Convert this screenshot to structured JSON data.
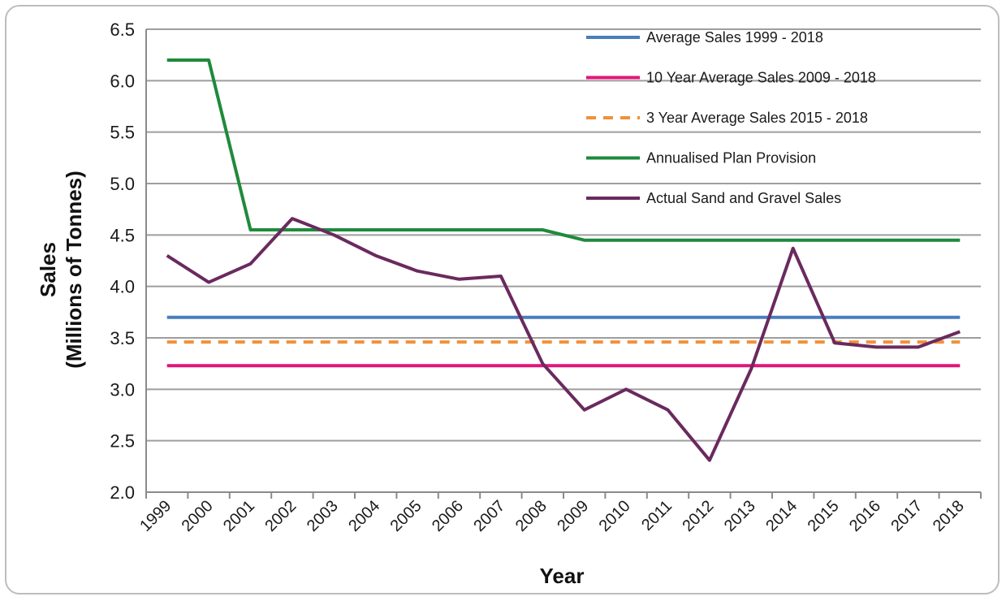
{
  "chart_data": {
    "type": "line",
    "xlabel": "Year",
    "ylabel_line1": "Sales",
    "ylabel_line2": "(Millions of Tonnes)",
    "ylim": [
      2.0,
      6.5
    ],
    "yticks": [
      "2.0",
      "2.5",
      "3.0",
      "3.5",
      "4.0",
      "4.5",
      "5.0",
      "5.5",
      "6.0",
      "6.5"
    ],
    "grid": true,
    "legend_position": "top-right",
    "categories": [
      "1999",
      "2000",
      "2001",
      "2002",
      "2003",
      "2004",
      "2005",
      "2006",
      "2007",
      "2008",
      "2009",
      "2010",
      "2011",
      "2012",
      "2013",
      "2014",
      "2015",
      "2016",
      "2017",
      "2018"
    ],
    "series": [
      {
        "name": "Average Sales 1999 - 2018",
        "color": "#4a7ebb",
        "dash": false,
        "values": [
          3.7,
          3.7,
          3.7,
          3.7,
          3.7,
          3.7,
          3.7,
          3.7,
          3.7,
          3.7,
          3.7,
          3.7,
          3.7,
          3.7,
          3.7,
          3.7,
          3.7,
          3.7,
          3.7,
          3.7
        ]
      },
      {
        "name": "10 Year Average Sales 2009 - 2018",
        "color": "#e0157a",
        "dash": false,
        "values": [
          3.23,
          3.23,
          3.23,
          3.23,
          3.23,
          3.23,
          3.23,
          3.23,
          3.23,
          3.23,
          3.23,
          3.23,
          3.23,
          3.23,
          3.23,
          3.23,
          3.23,
          3.23,
          3.23,
          3.23
        ]
      },
      {
        "name": "3 Year Average Sales 2015 - 2018",
        "color": "#f0913a",
        "dash": true,
        "values": [
          3.46,
          3.46,
          3.46,
          3.46,
          3.46,
          3.46,
          3.46,
          3.46,
          3.46,
          3.46,
          3.46,
          3.46,
          3.46,
          3.46,
          3.46,
          3.46,
          3.46,
          3.46,
          3.46,
          3.46
        ]
      },
      {
        "name": "Annualised Plan Provision",
        "color": "#1e8a3c",
        "dash": false,
        "values": [
          6.2,
          6.2,
          4.55,
          4.55,
          4.55,
          4.55,
          4.55,
          4.55,
          4.55,
          4.55,
          4.45,
          4.45,
          4.45,
          4.45,
          4.45,
          4.45,
          4.45,
          4.45,
          4.45,
          4.45
        ]
      },
      {
        "name": "Actual Sand and Gravel Sales",
        "color": "#6a2a5e",
        "dash": false,
        "values": [
          4.3,
          4.04,
          4.22,
          4.66,
          4.5,
          4.3,
          4.15,
          4.07,
          4.1,
          3.25,
          2.8,
          3.0,
          2.8,
          2.31,
          3.2,
          4.37,
          3.45,
          3.41,
          3.41,
          3.56
        ]
      }
    ]
  }
}
